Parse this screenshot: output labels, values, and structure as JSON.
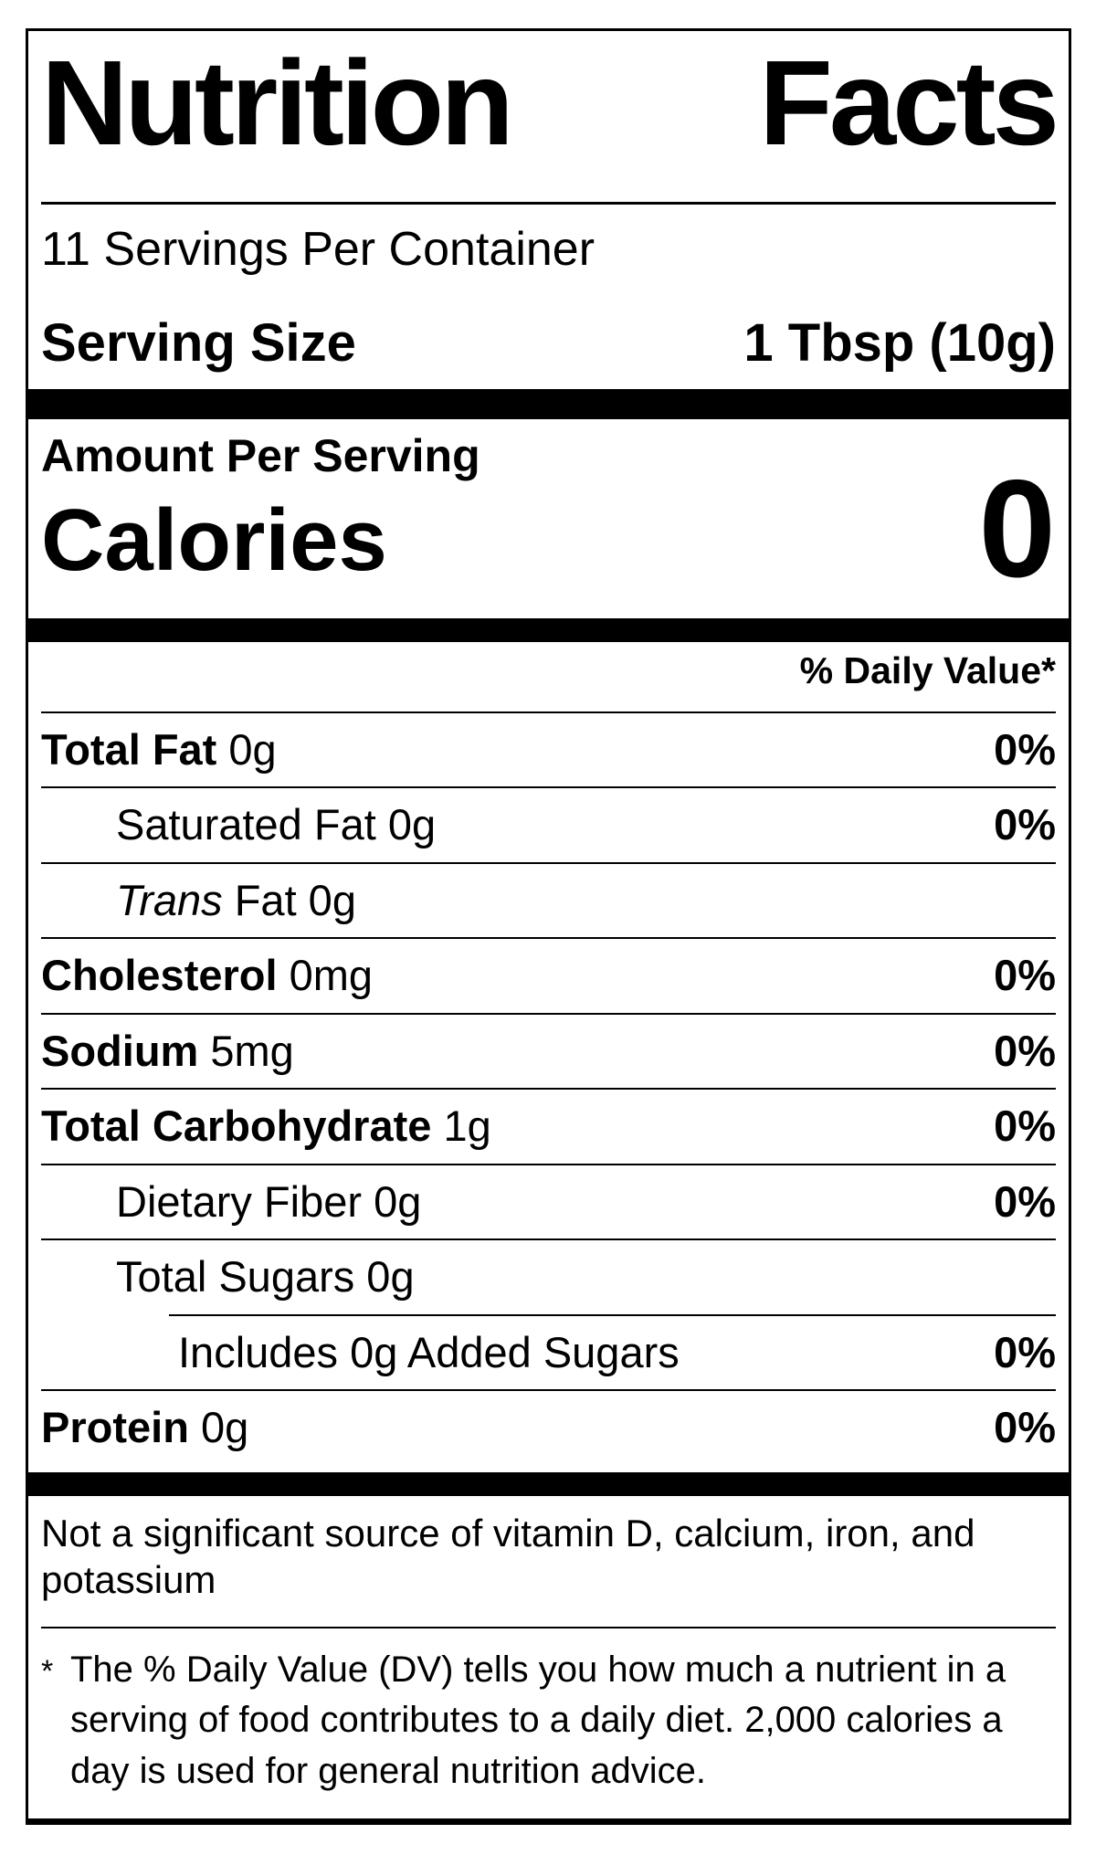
{
  "label": {
    "title": "Nutrition Facts",
    "servings_per_container": "11 Servings Per Container",
    "serving_size": {
      "label": "Serving Size",
      "value": "1 Tbsp (10g)"
    },
    "amount_per_serving": "Amount Per Serving",
    "calories": {
      "label": "Calories",
      "value": "0"
    },
    "daily_value_header": "% Daily Value*",
    "nutrients": [
      {
        "bold": "Total Fat",
        "text": " 0g",
        "dv": "0%",
        "indent": 0,
        "rule": "full"
      },
      {
        "text": "Saturated Fat 0g",
        "dv": "0%",
        "indent": 1,
        "rule": "full"
      },
      {
        "italic": "Trans",
        "text": " Fat 0g",
        "dv": "",
        "indent": 1,
        "rule": "full"
      },
      {
        "bold": "Cholesterol",
        "text": " 0mg",
        "dv": "0%",
        "indent": 0,
        "rule": "full"
      },
      {
        "bold": "Sodium",
        "text": " 5mg",
        "dv": "0%",
        "indent": 0,
        "rule": "full"
      },
      {
        "bold": "Total Carbohydrate",
        "text": " 1g",
        "dv": "0%",
        "indent": 0,
        "rule": "full"
      },
      {
        "text": "Dietary Fiber 0g",
        "dv": "0%",
        "indent": 1,
        "rule": "full"
      },
      {
        "text": "Total Sugars 0g",
        "dv": "",
        "indent": 1,
        "rule": "full"
      },
      {
        "text": "Includes 0g Added Sugars",
        "dv": "0%",
        "indent": 2,
        "rule": "indented"
      },
      {
        "bold": "Protein",
        "text": " 0g",
        "dv": "0%",
        "indent": 0,
        "rule": "full"
      }
    ],
    "not_significant_lines": [
      "Not a significant source of vitamin D, calcium, iron, and",
      "potassium"
    ],
    "footnote": {
      "marker": "*",
      "lines": [
        "The % Daily Value (DV) tells you how much a nutrient in a",
        "serving of food contributes to a daily diet. 2,000 calories a",
        "day is used for general nutrition advice."
      ]
    },
    "colors": {
      "ink": "#000000",
      "background": "#ffffff"
    }
  }
}
